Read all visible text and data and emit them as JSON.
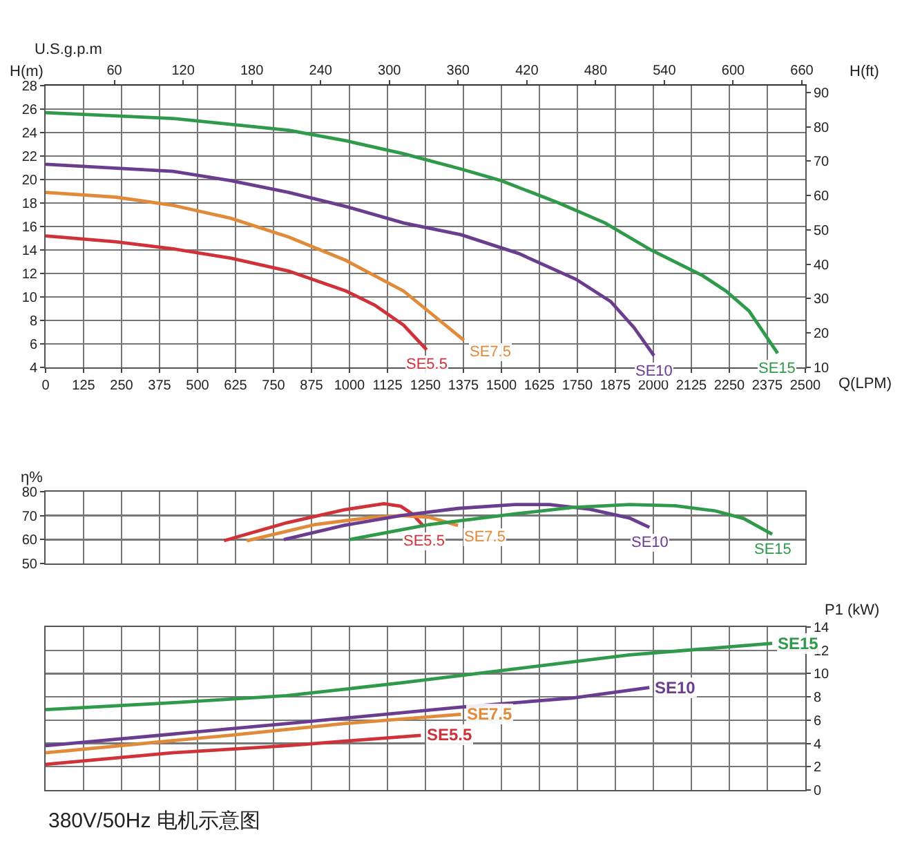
{
  "chart_data": [
    {
      "type": "line",
      "xlabel": "Q(LPM)",
      "ylabel": "H(m)",
      "y2label": "H(ft)",
      "x2label": "U.S.g.p.m",
      "xlim": [
        0,
        2500
      ],
      "xticks": [
        0,
        125,
        250,
        375,
        500,
        625,
        750,
        875,
        1000,
        1125,
        1250,
        1375,
        1500,
        1625,
        1750,
        1875,
        2000,
        2125,
        2250,
        2375,
        2500
      ],
      "x2lim": [
        0,
        663
      ],
      "x2ticks": [
        60,
        120,
        180,
        240,
        300,
        360,
        420,
        480,
        540,
        600,
        660
      ],
      "ylim": [
        4,
        28
      ],
      "yticks": [
        4,
        6,
        8,
        10,
        12,
        14,
        16,
        18,
        20,
        22,
        24,
        26,
        28
      ],
      "y2lim": [
        10,
        92
      ],
      "y2ticks": [
        10,
        20,
        30,
        40,
        50,
        60,
        70,
        80,
        90
      ],
      "grid": true,
      "series": [
        {
          "name": "SE5.5",
          "color": "#d0323a",
          "x": [
            0,
            231,
            420,
            610,
            800,
            989,
            1083,
            1178,
            1254
          ],
          "values": [
            15.2,
            14.7,
            14.1,
            13.3,
            12.2,
            10.5,
            9.3,
            7.6,
            5.5
          ]
        },
        {
          "name": "SE7.5",
          "color": "#e08a3a",
          "x": [
            0,
            231,
            420,
            610,
            800,
            989,
            1178,
            1273,
            1377
          ],
          "values": [
            18.9,
            18.5,
            17.8,
            16.7,
            15.1,
            13.1,
            10.5,
            8.5,
            6.3
          ]
        },
        {
          "name": "SE10",
          "color": "#6a3d8f",
          "x": [
            0,
            420,
            610,
            800,
            989,
            1178,
            1367,
            1557,
            1746,
            1860,
            1936,
            2002
          ],
          "values": [
            21.3,
            20.7,
            19.9,
            18.9,
            17.7,
            16.3,
            15.3,
            13.7,
            11.5,
            9.6,
            7.4,
            5.0
          ]
        },
        {
          "name": "SE15",
          "color": "#2e9a4a",
          "x": [
            0,
            420,
            800,
            989,
            1178,
            1367,
            1500,
            1689,
            1841,
            1992,
            2163,
            2239,
            2315,
            2409
          ],
          "values": [
            25.7,
            25.2,
            24.2,
            23.3,
            22.2,
            20.9,
            19.9,
            18,
            16.3,
            14,
            11.8,
            10.5,
            8.8,
            5.2
          ]
        }
      ]
    },
    {
      "type": "line",
      "ylabel": "η%",
      "xlim": [
        0,
        2500
      ],
      "xticks": [
        0,
        125,
        250,
        375,
        500,
        625,
        750,
        875,
        1000,
        1125,
        1250,
        1375,
        1500,
        1625,
        1750,
        1875,
        2000,
        2125,
        2250,
        2375,
        2500
      ],
      "ylim": [
        50,
        80
      ],
      "yticks": [
        50,
        60,
        70,
        80
      ],
      "grid": true,
      "tick_labels": "y",
      "series": [
        {
          "name": "SE5.5",
          "color": "#d0323a",
          "x": [
            587,
            793,
            981,
            1113,
            1169,
            1207,
            1245
          ],
          "values": [
            59.5,
            67,
            72.4,
            75,
            73.9,
            70.7,
            65.4
          ]
        },
        {
          "name": "SE7.5",
          "color": "#e08a3a",
          "x": [
            662,
            887,
            1075,
            1169,
            1263,
            1357
          ],
          "values": [
            59.5,
            66.3,
            69.3,
            70,
            69.3,
            65.9
          ]
        },
        {
          "name": "SE10",
          "color": "#6a3d8f",
          "x": [
            784,
            981,
            1169,
            1357,
            1545,
            1658,
            1790,
            1921,
            1987
          ],
          "values": [
            60,
            65.9,
            70,
            73,
            74.6,
            74.6,
            72.7,
            69,
            65.1
          ]
        },
        {
          "name": "SE15",
          "color": "#2e9a4a",
          "x": [
            1000,
            1263,
            1545,
            1733,
            1921,
            2072,
            2203,
            2297,
            2391
          ],
          "values": [
            60,
            66.3,
            70.7,
            73.4,
            74.6,
            74.1,
            72,
            68.8,
            62.2
          ]
        }
      ]
    },
    {
      "type": "line",
      "ylabel": "P1 (kW)",
      "xlim": [
        0,
        2500
      ],
      "xticks": [
        0,
        125,
        250,
        375,
        500,
        625,
        750,
        875,
        1000,
        1125,
        1250,
        1375,
        1500,
        1625,
        1750,
        1875,
        2000,
        2125,
        2250,
        2375,
        2500
      ],
      "ylim": [
        0,
        14
      ],
      "yticks": [
        0,
        2,
        4,
        6,
        8,
        10,
        12,
        14
      ],
      "grid": true,
      "tick_labels": "y",
      "annotations": [
        "380V/50Hz 电机示意图"
      ],
      "series": [
        {
          "name": "SE5.5",
          "color": "#d0323a",
          "x": [
            0,
            417,
            793,
            1235
          ],
          "values": [
            2.2,
            3.2,
            3.8,
            4.7
          ]
        },
        {
          "name": "SE7.5",
          "color": "#e08a3a",
          "x": [
            0,
            605,
            981,
            1367
          ],
          "values": [
            3.2,
            4.7,
            5.7,
            6.5
          ]
        },
        {
          "name": "SE10",
          "color": "#6a3d8f",
          "x": [
            0,
            793,
            1357,
            1733,
            1987
          ],
          "values": [
            3.8,
            5.7,
            7.1,
            7.9,
            8.8
          ]
        },
        {
          "name": "SE15",
          "color": "#2e9a4a",
          "x": [
            0,
            417,
            793,
            1169,
            1545,
            1921,
            2203,
            2391
          ],
          "values": [
            6.9,
            7.5,
            8.1,
            9.2,
            10.4,
            11.6,
            12.2,
            12.6
          ]
        }
      ]
    }
  ]
}
